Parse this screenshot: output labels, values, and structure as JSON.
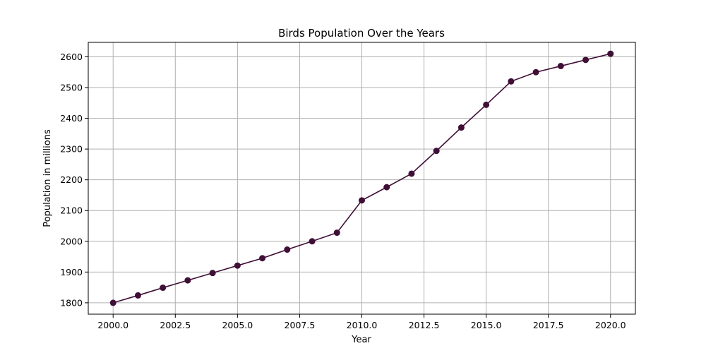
{
  "chart_data": {
    "type": "line",
    "title": "Birds Population Over the Years",
    "xlabel": "Year",
    "ylabel": "Population in millions",
    "xlim": [
      1999.0,
      2021.0
    ],
    "ylim": [
      1763,
      2647
    ],
    "x_ticks": [
      2000.0,
      2002.5,
      2005.0,
      2007.5,
      2010.0,
      2012.5,
      2015.0,
      2017.5,
      2020.0
    ],
    "x_tick_labels": [
      "2000.0",
      "2002.5",
      "2005.0",
      "2007.5",
      "2010.0",
      "2012.5",
      "2015.0",
      "2017.5",
      "2020.0"
    ],
    "y_ticks": [
      1800,
      1900,
      2000,
      2100,
      2200,
      2300,
      2400,
      2500,
      2600
    ],
    "y_tick_labels": [
      "1800",
      "1900",
      "2000",
      "2100",
      "2200",
      "2300",
      "2400",
      "2500",
      "2600"
    ],
    "grid": true,
    "legend": "none",
    "series": [
      {
        "color": "#3f0f36",
        "marker": "circle",
        "x": [
          2000,
          2001,
          2002,
          2003,
          2004,
          2005,
          2006,
          2007,
          2008,
          2009,
          2010,
          2011,
          2012,
          2013,
          2014,
          2015,
          2016,
          2017,
          2018,
          2019,
          2020
        ],
        "values": [
          1800,
          1824,
          1849,
          1873,
          1897,
          1921,
          1945,
          1973,
          2000,
          2028,
          2133,
          2176,
          2220,
          2294,
          2370,
          2444,
          2520,
          2550,
          2570,
          2590,
          2610
        ]
      }
    ]
  }
}
